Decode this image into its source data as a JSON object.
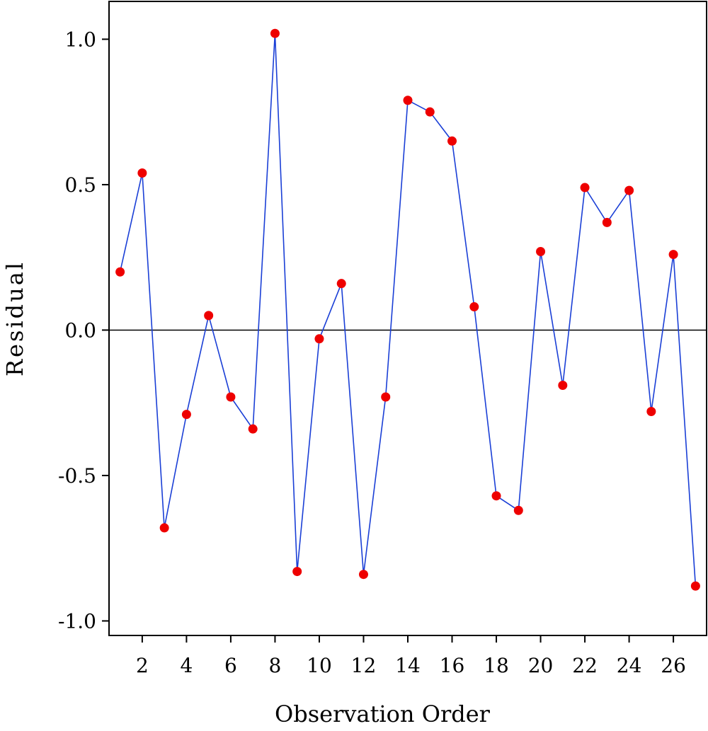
{
  "chart_data": {
    "type": "line",
    "xlabel": "Observation Order",
    "ylabel": "Residual",
    "xlim": [
      0.5,
      27.5
    ],
    "ylim": [
      -1.05,
      1.13
    ],
    "xticks": [
      2,
      4,
      6,
      8,
      10,
      12,
      14,
      16,
      18,
      20,
      22,
      24,
      26
    ],
    "xtick_labels": [
      "2",
      "4",
      "6",
      "8",
      "10",
      "12",
      "14",
      "16",
      "18",
      "20",
      "22",
      "24",
      "26"
    ],
    "yticks": [
      -1.0,
      -0.5,
      0.0,
      0.5,
      1.0
    ],
    "ytick_labels": [
      "-1.0",
      "-0.5",
      "0.0",
      "0.5",
      "1.0"
    ],
    "reference_line": {
      "y": 0.0,
      "color": "#000000"
    },
    "grid": false,
    "line_color": "#1a3fd6",
    "marker_color": "#ee0000",
    "series": [
      {
        "x": [
          1,
          2,
          3,
          4,
          5,
          6,
          7,
          8,
          9,
          10,
          11,
          12,
          13,
          14,
          15,
          16,
          17,
          18,
          19,
          20,
          21,
          22,
          23,
          24,
          25,
          26,
          27
        ],
        "values": [
          0.2,
          0.54,
          -0.68,
          -0.29,
          0.05,
          -0.23,
          -0.34,
          1.02,
          -0.83,
          -0.03,
          0.16,
          -0.84,
          -0.23,
          0.79,
          0.75,
          0.65,
          0.08,
          -0.57,
          -0.62,
          0.27,
          -0.19,
          0.49,
          0.37,
          0.48,
          -0.28,
          0.26,
          -0.88
        ]
      }
    ]
  }
}
